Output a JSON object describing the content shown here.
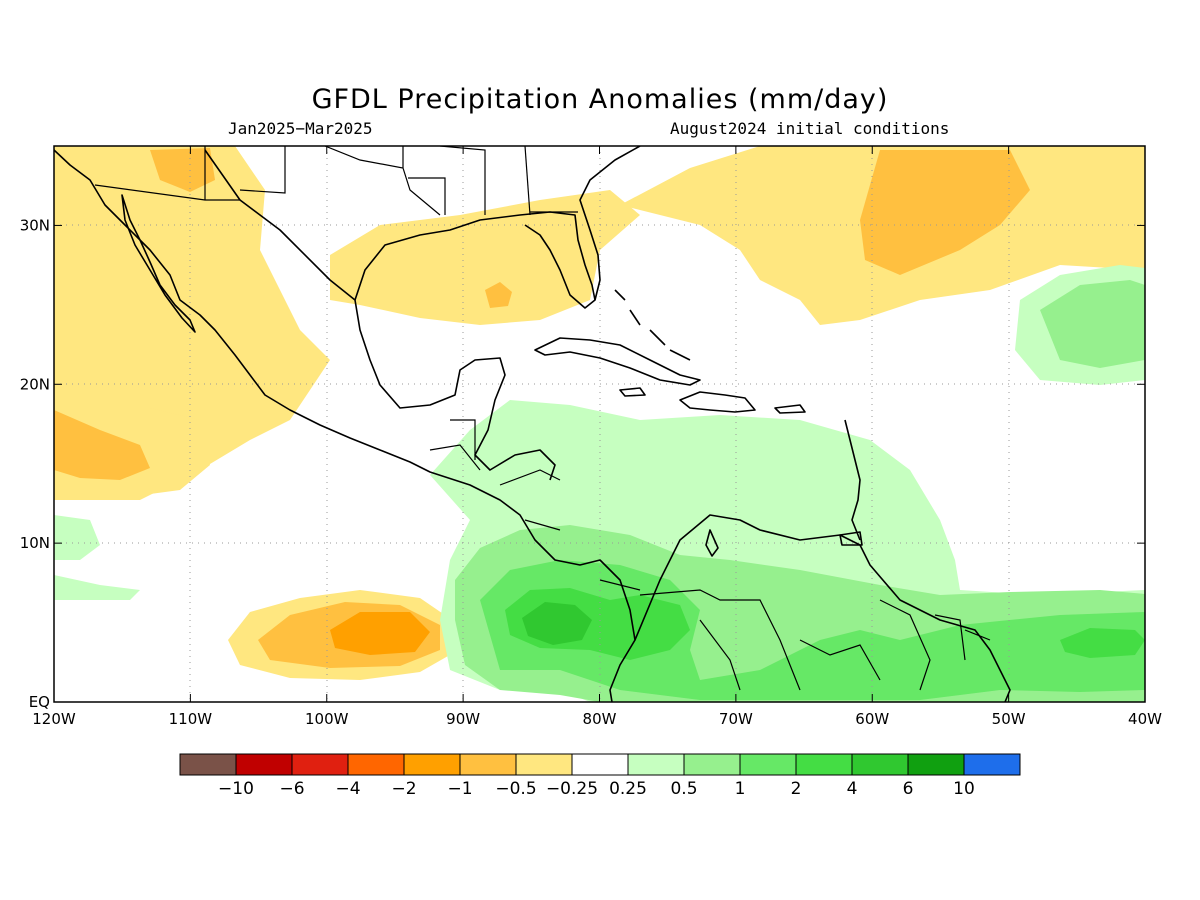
{
  "title": "GFDL Precipitation Anomalies (mm/day)",
  "period": "Jan2025−Mar2025",
  "initial_conditions": "August2024 initial conditions",
  "map": {
    "lon_range": [
      -120,
      -40
    ],
    "lat_range": [
      0,
      35
    ],
    "x_ticks": [
      {
        "value": -120,
        "label": "120W"
      },
      {
        "value": -110,
        "label": "110W"
      },
      {
        "value": -100,
        "label": "100W"
      },
      {
        "value": -90,
        "label": "90W"
      },
      {
        "value": -80,
        "label": "80W"
      },
      {
        "value": -70,
        "label": "70W"
      },
      {
        "value": -60,
        "label": "60W"
      },
      {
        "value": -50,
        "label": "50W"
      },
      {
        "value": -40,
        "label": "40W"
      }
    ],
    "y_ticks": [
      {
        "value": 0,
        "label": "EQ"
      },
      {
        "value": 10,
        "label": "10N"
      },
      {
        "value": 20,
        "label": "20N"
      },
      {
        "value": 30,
        "label": "30N"
      }
    ],
    "grid": "dotted"
  },
  "colorbar": {
    "colors": [
      "#7a5248",
      "#c00000",
      "#e02010",
      "#ff6600",
      "#ffa000",
      "#ffc040",
      "#ffe780",
      "#ffffff",
      "#c6ffc0",
      "#96f08e",
      "#66e866",
      "#44dd44",
      "#30c830",
      "#10a010",
      "#1e6eeb"
    ],
    "labels": [
      "−10",
      "−6",
      "−4",
      "−2",
      "−1",
      "−0.5",
      "−0.25",
      "0.25",
      "0.5",
      "1",
      "2",
      "4",
      "6",
      "10"
    ]
  }
}
